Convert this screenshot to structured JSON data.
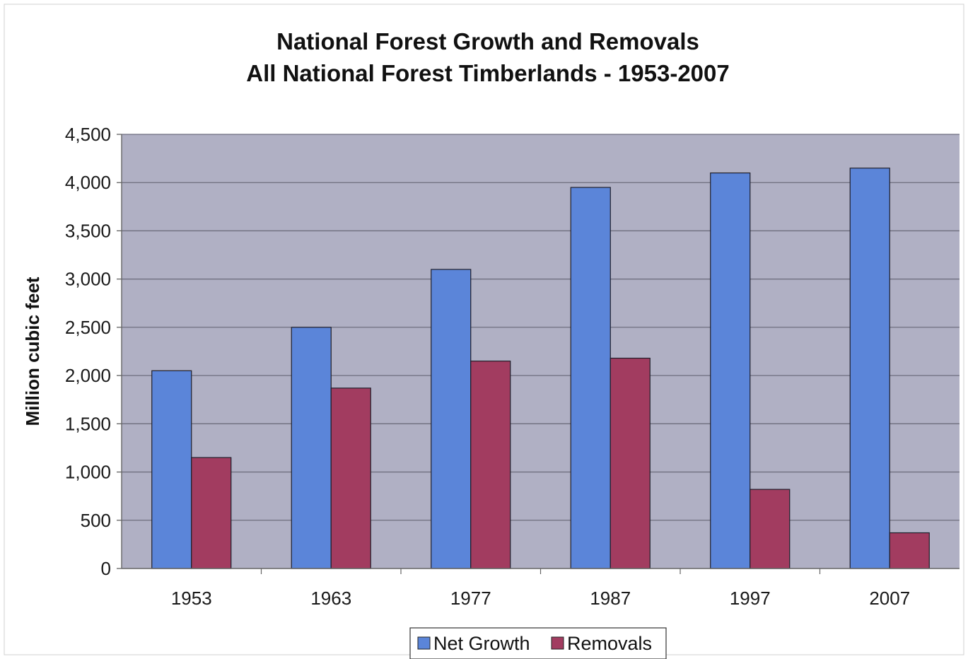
{
  "chart_data": {
    "type": "bar",
    "title": "National Forest Growth and Removals",
    "subtitle": "All National Forest Timberlands - 1953-2007",
    "xlabel": "",
    "ylabel": "Million cubic feet",
    "categories": [
      "1953",
      "1963",
      "1977",
      "1987",
      "1997",
      "2007"
    ],
    "series": [
      {
        "name": "Net Growth",
        "color": "#5b85d9",
        "values": [
          2050,
          2500,
          3100,
          3950,
          4100,
          4150
        ]
      },
      {
        "name": "Removals",
        "color": "#a23c60",
        "values": [
          1150,
          1870,
          2150,
          2180,
          820,
          370
        ]
      }
    ],
    "ylim": [
      0,
      4500
    ],
    "yticks": [
      "0",
      "500",
      "1,000",
      "1,500",
      "2,000",
      "2,500",
      "3,000",
      "3,500",
      "4,000",
      "4,500"
    ],
    "grid": true,
    "legend_position": "bottom",
    "plot_background": "#b0b0c4"
  }
}
